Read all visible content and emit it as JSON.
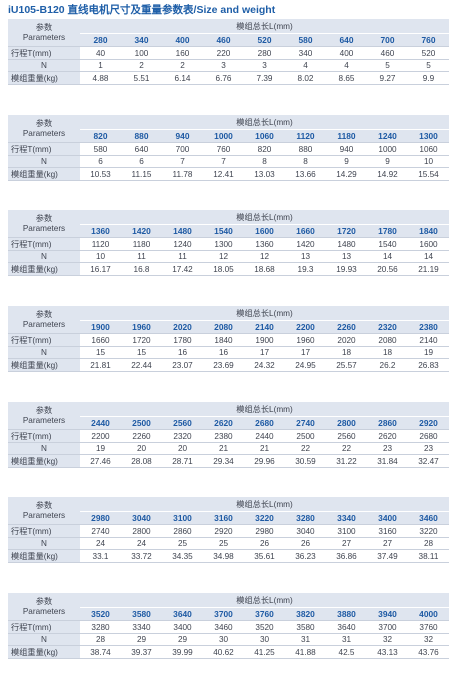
{
  "title": "iU105-B120  直线电机尺寸及重量参数表/Size and weight",
  "labels": {
    "param_cn": "参数",
    "param_en": "Parameters",
    "length_header": "模组总长L(mm)",
    "stroke": "行程T(mm)",
    "n": "N",
    "weight": "模组重量(kg)"
  },
  "tables": [
    {
      "lengths": [
        "280",
        "340",
        "400",
        "460",
        "520",
        "580",
        "640",
        "700",
        "760"
      ],
      "stroke": [
        "40",
        "100",
        "160",
        "220",
        "280",
        "340",
        "400",
        "460",
        "520"
      ],
      "n": [
        "1",
        "2",
        "2",
        "3",
        "3",
        "4",
        "4",
        "5",
        "5"
      ],
      "weight": [
        "4.88",
        "5.51",
        "6.14",
        "6.76",
        "7.39",
        "8.02",
        "8.65",
        "9.27",
        "9.9"
      ]
    },
    {
      "lengths": [
        "820",
        "880",
        "940",
        "1000",
        "1060",
        "1120",
        "1180",
        "1240",
        "1300"
      ],
      "stroke": [
        "580",
        "640",
        "700",
        "760",
        "820",
        "880",
        "940",
        "1000",
        "1060"
      ],
      "n": [
        "6",
        "6",
        "7",
        "7",
        "8",
        "8",
        "9",
        "9",
        "10"
      ],
      "weight": [
        "10.53",
        "11.15",
        "11.78",
        "12.41",
        "13.03",
        "13.66",
        "14.29",
        "14.92",
        "15.54"
      ]
    },
    {
      "lengths": [
        "1360",
        "1420",
        "1480",
        "1540",
        "1600",
        "1660",
        "1720",
        "1780",
        "1840"
      ],
      "stroke": [
        "1120",
        "1180",
        "1240",
        "1300",
        "1360",
        "1420",
        "1480",
        "1540",
        "1600"
      ],
      "n": [
        "10",
        "11",
        "11",
        "12",
        "12",
        "13",
        "13",
        "14",
        "14"
      ],
      "weight": [
        "16.17",
        "16.8",
        "17.42",
        "18.05",
        "18.68",
        "19.3",
        "19.93",
        "20.56",
        "21.19"
      ]
    },
    {
      "lengths": [
        "1900",
        "1960",
        "2020",
        "2080",
        "2140",
        "2200",
        "2260",
        "2320",
        "2380"
      ],
      "stroke": [
        "1660",
        "1720",
        "1780",
        "1840",
        "1900",
        "1960",
        "2020",
        "2080",
        "2140"
      ],
      "n": [
        "15",
        "15",
        "16",
        "16",
        "17",
        "17",
        "18",
        "18",
        "19"
      ],
      "weight": [
        "21.81",
        "22.44",
        "23.07",
        "23.69",
        "24.32",
        "24.95",
        "25.57",
        "26.2",
        "26.83"
      ]
    },
    {
      "lengths": [
        "2440",
        "2500",
        "2560",
        "2620",
        "2680",
        "2740",
        "2800",
        "2860",
        "2920"
      ],
      "stroke": [
        "2200",
        "2260",
        "2320",
        "2380",
        "2440",
        "2500",
        "2560",
        "2620",
        "2680"
      ],
      "n": [
        "19",
        "20",
        "20",
        "21",
        "21",
        "22",
        "22",
        "23",
        "23"
      ],
      "weight": [
        "27.46",
        "28.08",
        "28.71",
        "29.34",
        "29.96",
        "30.59",
        "31.22",
        "31.84",
        "32.47"
      ]
    },
    {
      "lengths": [
        "2980",
        "3040",
        "3100",
        "3160",
        "3220",
        "3280",
        "3340",
        "3400",
        "3460"
      ],
      "stroke": [
        "2740",
        "2800",
        "2860",
        "2920",
        "2980",
        "3040",
        "3100",
        "3160",
        "3220"
      ],
      "n": [
        "24",
        "24",
        "25",
        "25",
        "26",
        "26",
        "27",
        "27",
        "28"
      ],
      "weight": [
        "33.1",
        "33.72",
        "34.35",
        "34.98",
        "35.61",
        "36.23",
        "36.86",
        "37.49",
        "38.11"
      ]
    },
    {
      "lengths": [
        "3520",
        "3580",
        "3640",
        "3700",
        "3760",
        "3820",
        "3880",
        "3940",
        "4000"
      ],
      "stroke": [
        "3280",
        "3340",
        "3400",
        "3460",
        "3520",
        "3580",
        "3640",
        "3700",
        "3760"
      ],
      "n": [
        "28",
        "29",
        "29",
        "30",
        "30",
        "31",
        "31",
        "32",
        "32"
      ],
      "weight": [
        "38.74",
        "39.37",
        "39.99",
        "40.62",
        "41.25",
        "41.88",
        "42.5",
        "43.13",
        "43.76"
      ]
    }
  ]
}
